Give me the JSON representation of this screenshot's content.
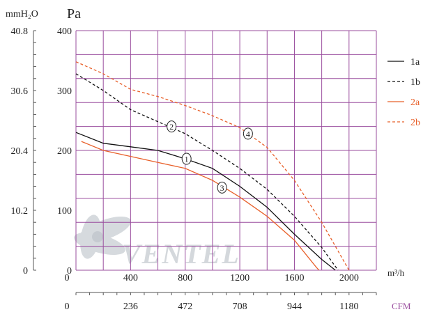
{
  "chart_data": {
    "type": "line",
    "units": {
      "left_outer": "mmH₂O",
      "left_inner": "Pa",
      "x_top": "m³/h",
      "x_bottom": "CFM"
    },
    "y_pa": {
      "range": [
        0,
        400
      ],
      "ticks": [
        "0",
        "100",
        "200",
        "300",
        "400"
      ]
    },
    "y_mmh2o": {
      "ticks": [
        "0",
        "10.2",
        "20.4",
        "30.6",
        "40.8"
      ]
    },
    "x_m3h": {
      "range": [
        0,
        2200
      ],
      "ticks": [
        "0",
        "400",
        "800",
        "1200",
        "1600",
        "2000"
      ]
    },
    "x_cfm": {
      "ticks": [
        "0",
        "236",
        "472",
        "708",
        "944",
        "1180"
      ]
    },
    "grid": true,
    "legend_position": "right",
    "series": [
      {
        "name": "1a",
        "color": "#111111",
        "dash": "solid",
        "marker": "1",
        "marker_at": [
          810,
          186
        ],
        "points": [
          [
            0,
            230
          ],
          [
            200,
            212
          ],
          [
            400,
            206
          ],
          [
            600,
            200
          ],
          [
            800,
            186
          ],
          [
            1000,
            170
          ],
          [
            1200,
            140
          ],
          [
            1400,
            105
          ],
          [
            1600,
            60
          ],
          [
            1800,
            18
          ],
          [
            1900,
            0
          ]
        ]
      },
      {
        "name": "1b",
        "color": "#111111",
        "dash": "dashed",
        "marker": "2",
        "marker_at": [
          700,
          240
        ],
        "points": [
          [
            0,
            328
          ],
          [
            200,
            300
          ],
          [
            400,
            268
          ],
          [
            600,
            248
          ],
          [
            800,
            228
          ],
          [
            1000,
            200
          ],
          [
            1200,
            170
          ],
          [
            1400,
            135
          ],
          [
            1600,
            90
          ],
          [
            1800,
            38
          ],
          [
            1920,
            0
          ]
        ]
      },
      {
        "name": "2a",
        "color": "#e8602a",
        "dash": "solid",
        "marker": "3",
        "marker_at": [
          1070,
          138
        ],
        "points": [
          [
            40,
            215
          ],
          [
            200,
            200
          ],
          [
            400,
            190
          ],
          [
            600,
            180
          ],
          [
            800,
            170
          ],
          [
            1000,
            150
          ],
          [
            1200,
            122
          ],
          [
            1400,
            90
          ],
          [
            1600,
            50
          ],
          [
            1760,
            5
          ],
          [
            1780,
            0
          ]
        ]
      },
      {
        "name": "2b",
        "color": "#e8602a",
        "dash": "dashed",
        "marker": "4",
        "marker_at": [
          1260,
          228
        ],
        "points": [
          [
            0,
            348
          ],
          [
            200,
            328
          ],
          [
            400,
            302
          ],
          [
            600,
            290
          ],
          [
            800,
            275
          ],
          [
            1000,
            258
          ],
          [
            1200,
            238
          ],
          [
            1400,
            205
          ],
          [
            1600,
            150
          ],
          [
            1800,
            80
          ],
          [
            2000,
            0
          ]
        ]
      }
    ]
  },
  "colors": {
    "grid": "#9a4d9e",
    "axis": "#555555",
    "cfm_unit": "#9a4d9e",
    "watermark": "#cfd3d8"
  },
  "watermark": "VENTEL"
}
